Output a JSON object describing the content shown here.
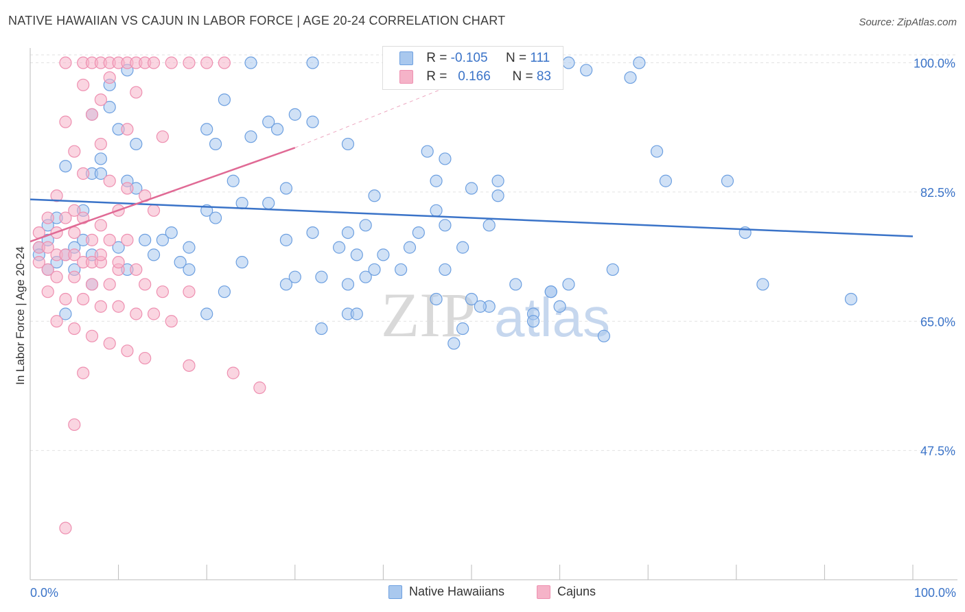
{
  "title": "NATIVE HAWAIIAN VS CAJUN IN LABOR FORCE | AGE 20-24 CORRELATION CHART",
  "source": "Source: ZipAtlas.com",
  "watermark": {
    "part1": "ZIP",
    "part2": "atlas"
  },
  "legend": {
    "rows": [
      {
        "r_label": "R =",
        "r_value": "-0.105",
        "n_label": "N =",
        "n_value": "111",
        "color": "#a9c8ee"
      },
      {
        "r_label": "R =",
        "r_value": "0.166",
        "n_label": "N =",
        "n_value": "83",
        "color": "#f5b3c8"
      }
    ],
    "bottom": [
      {
        "label": "Native Hawaiians",
        "color": "#a9c8ee"
      },
      {
        "label": "Cajuns",
        "color": "#f5b3c8"
      }
    ]
  },
  "chart_data": {
    "type": "scatter",
    "xlabel": "",
    "ylabel": "In Labor Force | Age 20-24",
    "xlim": [
      0,
      100
    ],
    "ylim": [
      30,
      102
    ],
    "x_tick_labels": [
      "0.0%",
      "100.0%"
    ],
    "y_tick_labels": [
      "100.0%",
      "82.5%",
      "65.0%",
      "47.5%"
    ],
    "y_ticks": [
      100,
      82.5,
      65,
      47.5
    ],
    "grid": true,
    "legend_position": "top-center",
    "series": [
      {
        "name": "Native Hawaiians",
        "color": "#6c9fe0",
        "fill": "#a9c8ee",
        "trend": {
          "x": [
            0,
            100
          ],
          "y": [
            81.5,
            76.5
          ],
          "color": "#3a73c8"
        },
        "points": [
          [
            25,
            100
          ],
          [
            32,
            100
          ],
          [
            61,
            100
          ],
          [
            69,
            100
          ],
          [
            11,
            99
          ],
          [
            63,
            99
          ],
          [
            68,
            98
          ],
          [
            9,
            97
          ],
          [
            22,
            95
          ],
          [
            9,
            94
          ],
          [
            30,
            93
          ],
          [
            7,
            93
          ],
          [
            27,
            92
          ],
          [
            32,
            92
          ],
          [
            28,
            91
          ],
          [
            20,
            91
          ],
          [
            10,
            91
          ],
          [
            25,
            90
          ],
          [
            36,
            89
          ],
          [
            12,
            89
          ],
          [
            21,
            89
          ],
          [
            45,
            88
          ],
          [
            71,
            88
          ],
          [
            47,
            87
          ],
          [
            8,
            87
          ],
          [
            4,
            86
          ],
          [
            7,
            85
          ],
          [
            8,
            85
          ],
          [
            79,
            84
          ],
          [
            53,
            84
          ],
          [
            46,
            84
          ],
          [
            72,
            84
          ],
          [
            11,
            84
          ],
          [
            23,
            84
          ],
          [
            12,
            83
          ],
          [
            29,
            83
          ],
          [
            50,
            83
          ],
          [
            53,
            82
          ],
          [
            39,
            82
          ],
          [
            46,
            80
          ],
          [
            27,
            81
          ],
          [
            24,
            81
          ],
          [
            20,
            80
          ],
          [
            21,
            79
          ],
          [
            52,
            78
          ],
          [
            38,
            78
          ],
          [
            44,
            77
          ],
          [
            32,
            77
          ],
          [
            36,
            77
          ],
          [
            81,
            77
          ],
          [
            35,
            75
          ],
          [
            29,
            76
          ],
          [
            15,
            76
          ],
          [
            6,
            76
          ],
          [
            2,
            76
          ],
          [
            5,
            75
          ],
          [
            4,
            74
          ],
          [
            18,
            75
          ],
          [
            37,
            74
          ],
          [
            7,
            74
          ],
          [
            14,
            74
          ],
          [
            30,
            71
          ],
          [
            38,
            71
          ],
          [
            33,
            71
          ],
          [
            36,
            70
          ],
          [
            47,
            72
          ],
          [
            42,
            72
          ],
          [
            39,
            72
          ],
          [
            29,
            70
          ],
          [
            61,
            70
          ],
          [
            55,
            70
          ],
          [
            59,
            69
          ],
          [
            22,
            69
          ],
          [
            50,
            68
          ],
          [
            46,
            68
          ],
          [
            66,
            72
          ],
          [
            52,
            67
          ],
          [
            60,
            67
          ],
          [
            57,
            66
          ],
          [
            4,
            66
          ],
          [
            20,
            66
          ],
          [
            51,
            67
          ],
          [
            65,
            63
          ],
          [
            48,
            62
          ],
          [
            83,
            70
          ],
          [
            59,
            69
          ],
          [
            93,
            68
          ],
          [
            1,
            75
          ],
          [
            3,
            79
          ],
          [
            2,
            78
          ],
          [
            6,
            80
          ],
          [
            10,
            75
          ],
          [
            13,
            76
          ],
          [
            16,
            77
          ],
          [
            17,
            73
          ],
          [
            18,
            72
          ],
          [
            24,
            73
          ],
          [
            40,
            74
          ],
          [
            43,
            75
          ],
          [
            47,
            78
          ],
          [
            49,
            75
          ],
          [
            11,
            72
          ],
          [
            7,
            70
          ],
          [
            3,
            73
          ],
          [
            2,
            72
          ],
          [
            1,
            74
          ],
          [
            5,
            72
          ],
          [
            36,
            66
          ],
          [
            37,
            66
          ],
          [
            57,
            65
          ],
          [
            33,
            64
          ],
          [
            49,
            64
          ]
        ]
      },
      {
        "name": "Cajuns",
        "color": "#ee8fb0",
        "fill": "#f5b3c8",
        "trend": {
          "x": [
            0,
            30
          ],
          "y": [
            75.8,
            88.5
          ],
          "color": "#e06a95",
          "dash_extension": {
            "x": [
              30,
              52
            ],
            "y": [
              88.5,
              99
            ]
          }
        },
        "points": [
          [
            4,
            100
          ],
          [
            6,
            100
          ],
          [
            7,
            100
          ],
          [
            8,
            100
          ],
          [
            9,
            100
          ],
          [
            10,
            100
          ],
          [
            11,
            100
          ],
          [
            12,
            100
          ],
          [
            13,
            100
          ],
          [
            14,
            100
          ],
          [
            16,
            100
          ],
          [
            18,
            100
          ],
          [
            20,
            100
          ],
          [
            22,
            100
          ],
          [
            9,
            98
          ],
          [
            6,
            97
          ],
          [
            12,
            96
          ],
          [
            8,
            95
          ],
          [
            7,
            93
          ],
          [
            4,
            92
          ],
          [
            11,
            91
          ],
          [
            15,
            90
          ],
          [
            8,
            89
          ],
          [
            5,
            88
          ],
          [
            6,
            85
          ],
          [
            9,
            84
          ],
          [
            11,
            83
          ],
          [
            13,
            82
          ],
          [
            3,
            82
          ],
          [
            5,
            80
          ],
          [
            10,
            80
          ],
          [
            14,
            80
          ],
          [
            2,
            79
          ],
          [
            4,
            79
          ],
          [
            6,
            79
          ],
          [
            8,
            78
          ],
          [
            1,
            77
          ],
          [
            3,
            77
          ],
          [
            5,
            77
          ],
          [
            7,
            76
          ],
          [
            9,
            76
          ],
          [
            11,
            76
          ],
          [
            1,
            75
          ],
          [
            2,
            75
          ],
          [
            3,
            74
          ],
          [
            4,
            74
          ],
          [
            5,
            74
          ],
          [
            6,
            73
          ],
          [
            7,
            73
          ],
          [
            8,
            73
          ],
          [
            10,
            72
          ],
          [
            12,
            72
          ],
          [
            2,
            72
          ],
          [
            3,
            71
          ],
          [
            5,
            71
          ],
          [
            7,
            70
          ],
          [
            9,
            70
          ],
          [
            13,
            70
          ],
          [
            15,
            69
          ],
          [
            18,
            69
          ],
          [
            2,
            69
          ],
          [
            4,
            68
          ],
          [
            6,
            68
          ],
          [
            8,
            67
          ],
          [
            10,
            67
          ],
          [
            12,
            66
          ],
          [
            14,
            66
          ],
          [
            16,
            65
          ],
          [
            3,
            65
          ],
          [
            5,
            64
          ],
          [
            7,
            63
          ],
          [
            9,
            62
          ],
          [
            11,
            61
          ],
          [
            13,
            60
          ],
          [
            18,
            59
          ],
          [
            23,
            58
          ],
          [
            26,
            56
          ],
          [
            6,
            58
          ],
          [
            5,
            51
          ],
          [
            4,
            37
          ],
          [
            8,
            74
          ],
          [
            10,
            73
          ],
          [
            1,
            73
          ]
        ]
      }
    ]
  }
}
